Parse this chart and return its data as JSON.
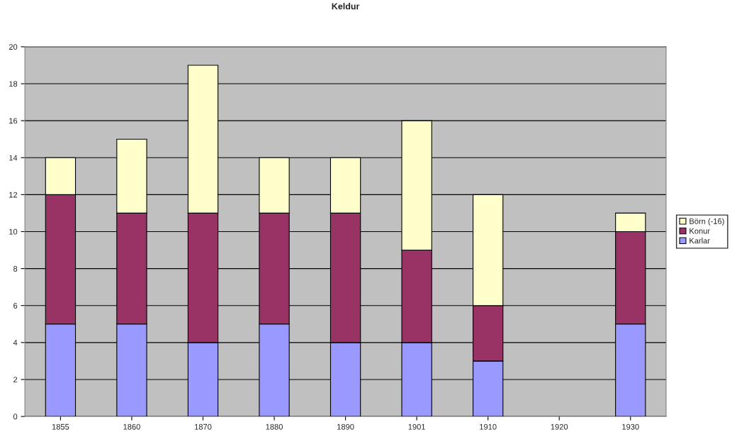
{
  "chart_data": {
    "type": "bar",
    "title": "Keldur",
    "stacked": true,
    "categories": [
      "1855",
      "1860",
      "1870",
      "1880",
      "1890",
      "1901",
      "1910",
      "1920",
      "1930"
    ],
    "series": [
      {
        "name": "Karlar",
        "color": "#9999ff",
        "values": [
          5,
          5,
          4,
          5,
          4,
          4,
          3,
          null,
          5
        ]
      },
      {
        "name": "Konur",
        "color": "#993366",
        "values": [
          7,
          6,
          7,
          6,
          7,
          5,
          3,
          null,
          5
        ]
      },
      {
        "name": "Börn (-16)",
        "color": "#ffffcc",
        "values": [
          2,
          4,
          8,
          3,
          3,
          7,
          6,
          null,
          1
        ]
      }
    ],
    "ylim": [
      0,
      20
    ],
    "yticks": [
      0,
      2,
      4,
      6,
      8,
      10,
      12,
      14,
      16,
      18,
      20
    ],
    "grid": "y",
    "legend": "right"
  }
}
